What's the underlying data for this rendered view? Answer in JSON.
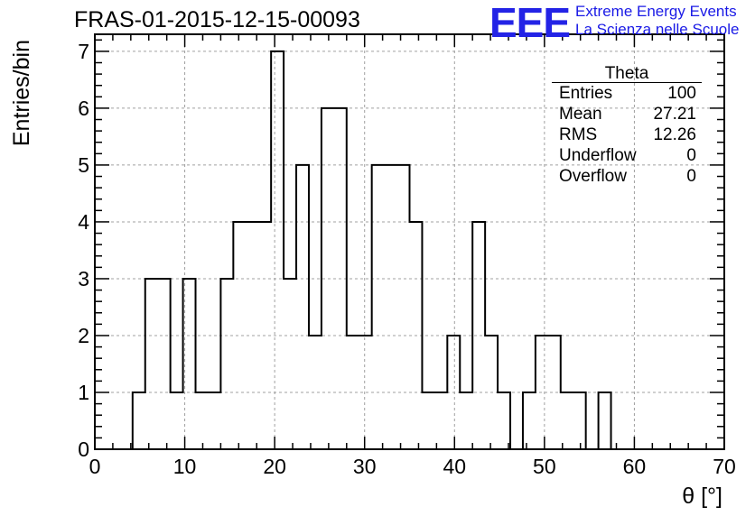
{
  "header": {
    "run_title": "FRAS-01-2015-12-15-00093",
    "logo_mark": "EEE",
    "logo_line1": "Extreme Energy Events",
    "logo_line2": "La Scienza nelle Scuole"
  },
  "stats_box": {
    "title": "Theta",
    "rows": [
      {
        "label": "Entries",
        "value": "100"
      },
      {
        "label": "Mean",
        "value": "27.21"
      },
      {
        "label": "RMS",
        "value": "12.26"
      },
      {
        "label": "Underflow",
        "value": "0"
      },
      {
        "label": "Overflow",
        "value": "0"
      }
    ]
  },
  "colors": {
    "line": "#000000",
    "grid": "#a0a0a0",
    "logo": "#2323e6"
  },
  "chart_data": {
    "type": "bar",
    "style": "step-histogram",
    "xlabel": "θ [°]",
    "ylabel": "Entries/bin",
    "xlim": [
      0,
      70
    ],
    "ylim": [
      0,
      7.3
    ],
    "xticks": [
      0,
      10,
      20,
      30,
      40,
      50,
      60,
      70
    ],
    "yticks": [
      0,
      1,
      2,
      3,
      4,
      5,
      6,
      7
    ],
    "grid": true,
    "bin_start": 0,
    "bin_width": 1.4,
    "values": [
      0,
      0,
      0,
      1,
      3,
      3,
      1,
      3,
      1,
      1,
      3,
      4,
      4,
      4,
      7,
      3,
      5,
      2,
      6,
      6,
      2,
      2,
      5,
      5,
      5,
      4,
      1,
      1,
      2,
      1,
      4,
      2,
      1,
      0,
      1,
      2,
      2,
      1,
      1,
      0,
      1,
      0,
      0,
      0,
      0,
      0,
      0,
      0,
      0,
      0
    ]
  }
}
